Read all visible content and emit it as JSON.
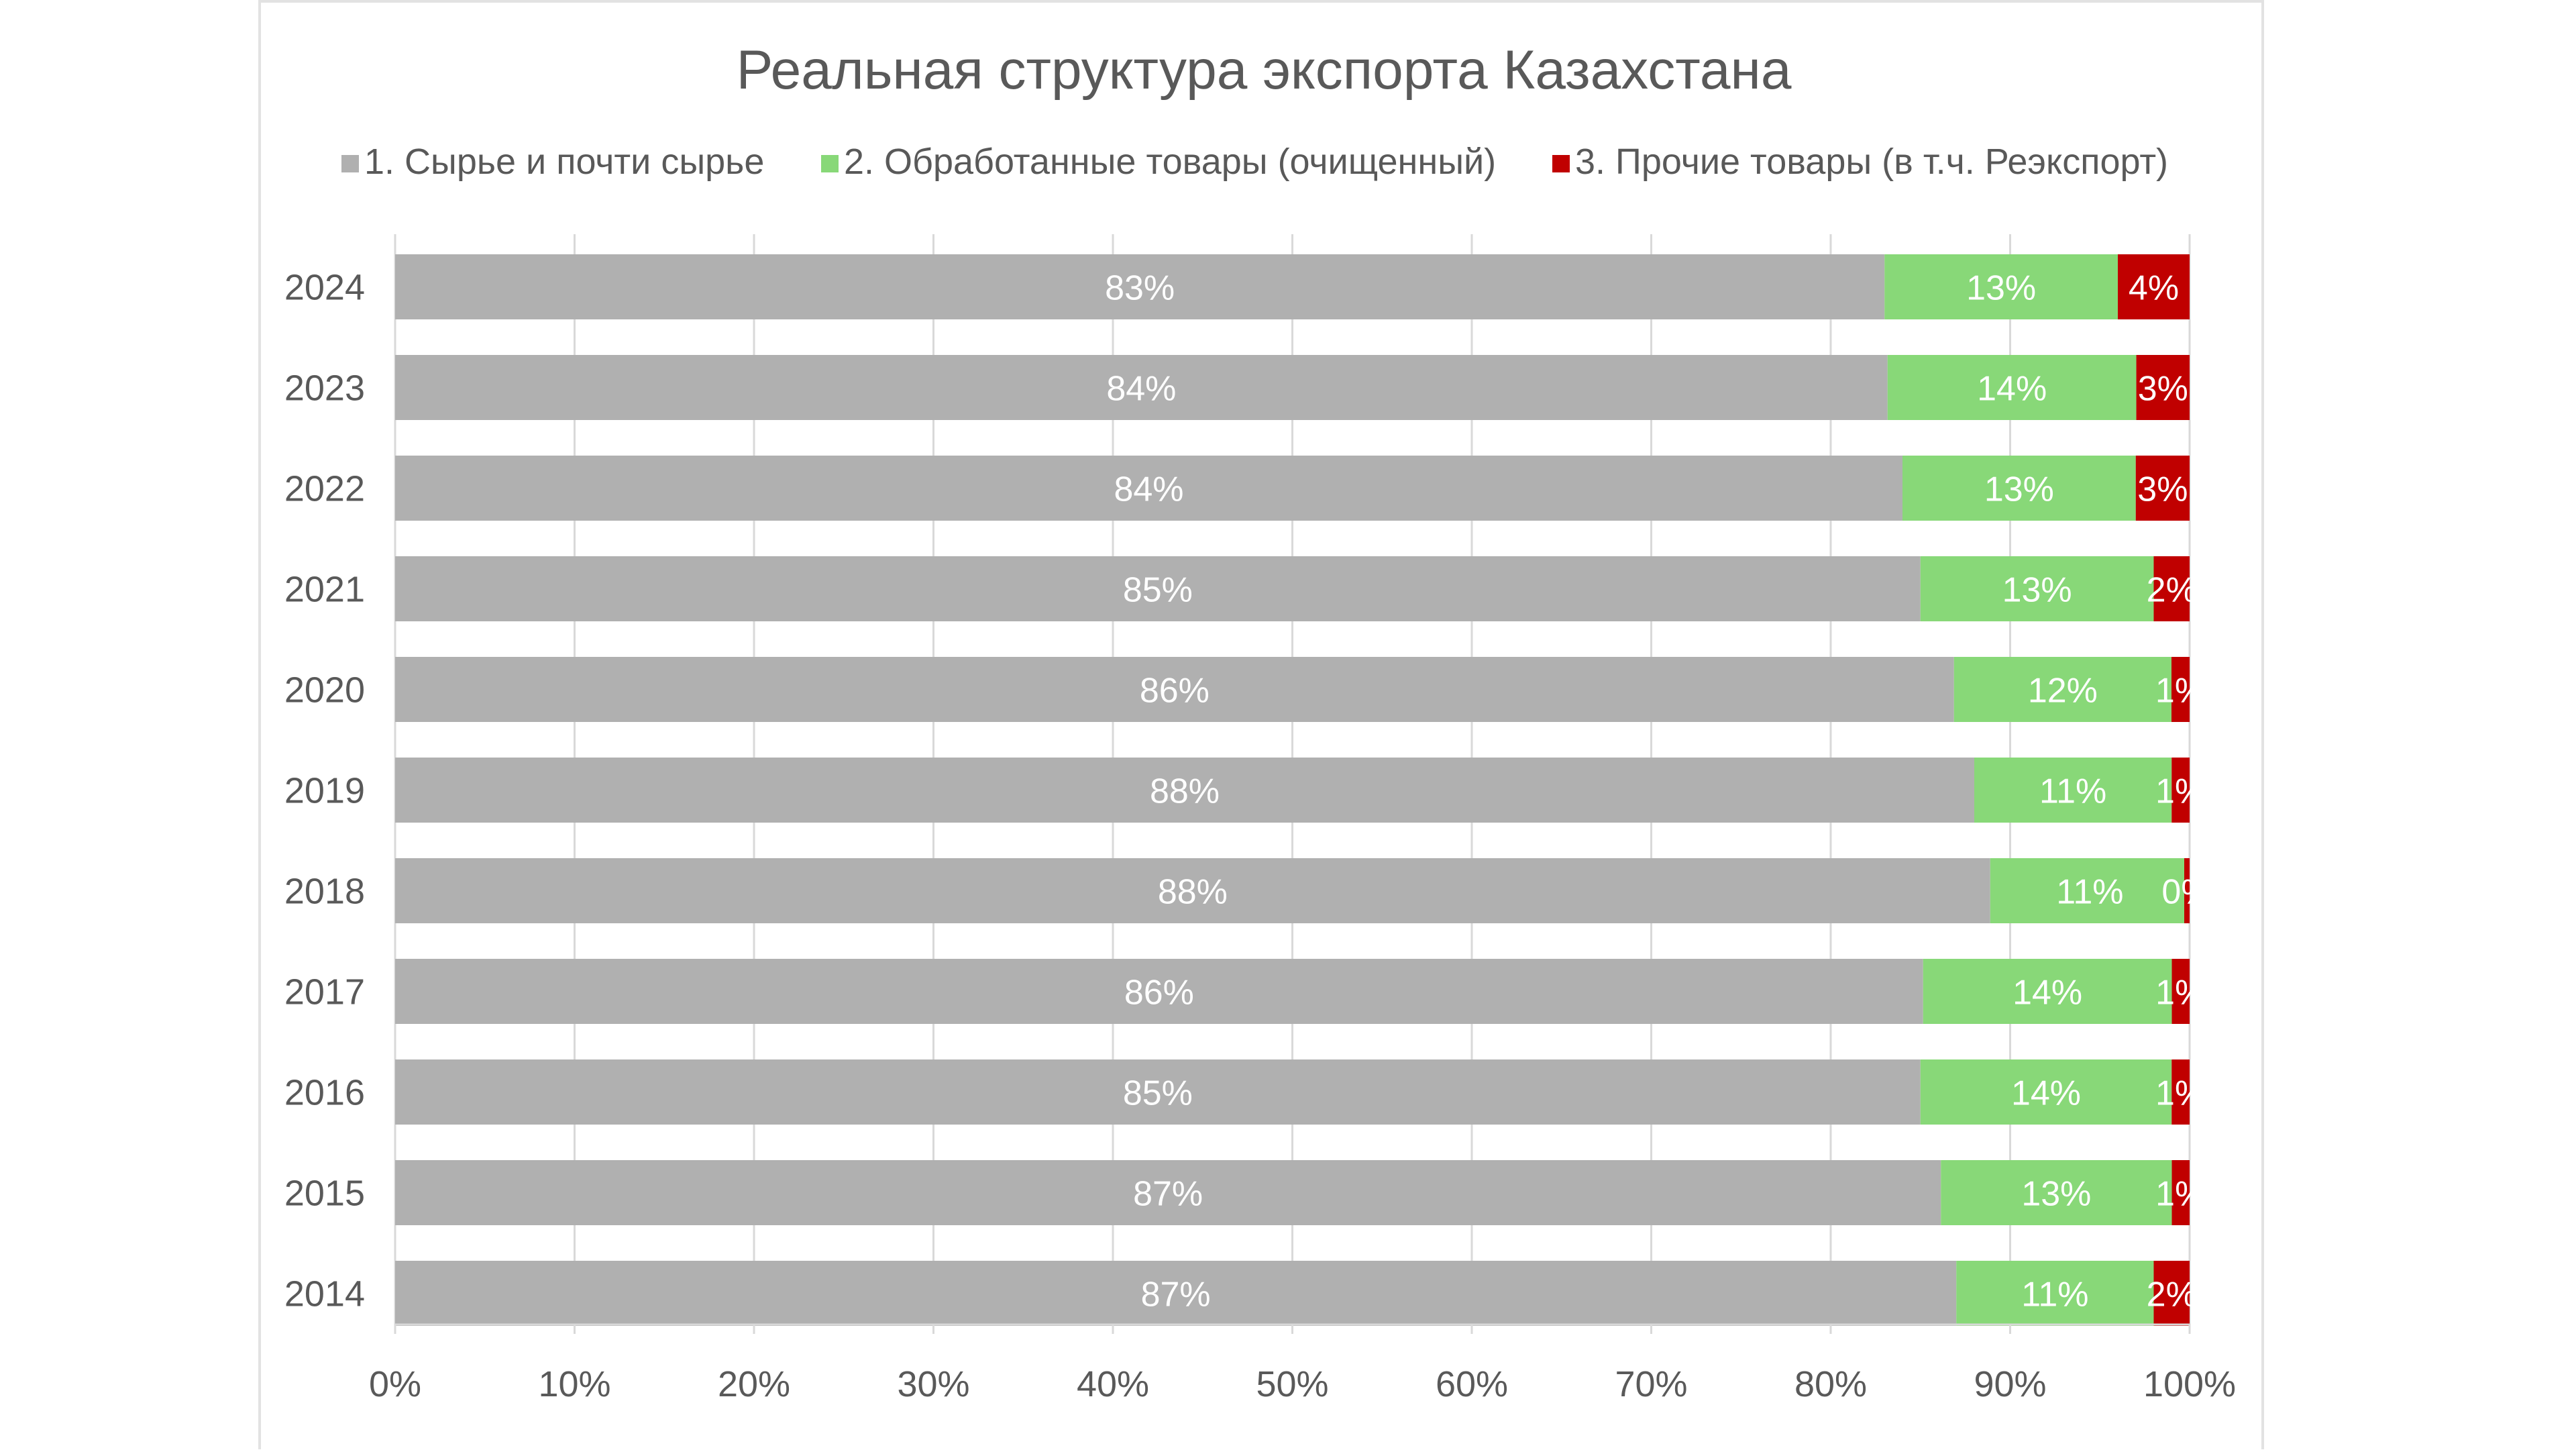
{
  "chart_data": {
    "type": "bar",
    "orientation": "horizontal",
    "stacked": "percent",
    "title": "Реальная структура экспорта Казахстана",
    "categories": [
      "2024",
      "2023",
      "2022",
      "2021",
      "2020",
      "2019",
      "2018",
      "2017",
      "2016",
      "2015",
      "2014"
    ],
    "series": [
      {
        "name": "1. Сырье и почти сырье",
        "color": "#b0b0b0",
        "values": [
          83,
          84,
          84,
          85,
          86,
          88,
          88,
          86,
          85,
          87,
          87
        ],
        "labels": [
          "83%",
          "84%",
          "84%",
          "85%",
          "86%",
          "88%",
          "88%",
          "86%",
          "85%",
          "87%",
          "87%"
        ]
      },
      {
        "name": "2. Обработанные товары (очищенный)",
        "color": "#88d878",
        "values": [
          13,
          14,
          13,
          13,
          12,
          11,
          11,
          14,
          14,
          13,
          11
        ],
        "labels": [
          "13%",
          "14%",
          "13%",
          "13%",
          "12%",
          "11%",
          "11%",
          "14%",
          "14%",
          "13%",
          "11%"
        ]
      },
      {
        "name": "3. Прочие товары (в т.ч. Реэкспорт)",
        "color": "#c00000",
        "values": [
          4,
          3,
          3,
          2,
          1,
          1,
          0,
          1,
          1,
          1,
          2
        ],
        "labels": [
          "4%",
          "3%",
          "3%",
          "2%",
          "1%",
          "1%",
          "0%",
          "1%",
          "1%",
          "1%",
          "2%"
        ]
      }
    ],
    "xlim": [
      0,
      100
    ],
    "xticks": [
      "0%",
      "10%",
      "20%",
      "30%",
      "40%",
      "50%",
      "60%",
      "70%",
      "80%",
      "90%",
      "100%"
    ],
    "grid": "vertical",
    "legend": "top"
  }
}
